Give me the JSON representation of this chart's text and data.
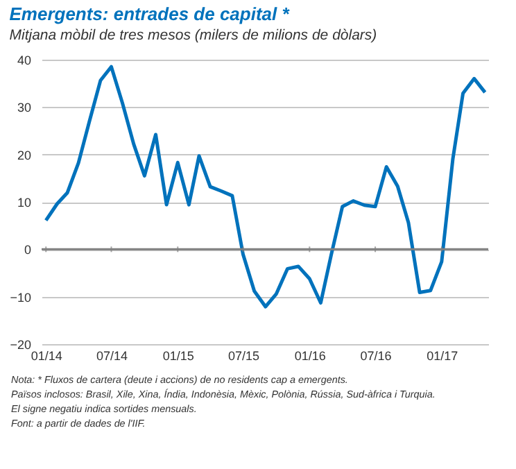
{
  "chart_data": {
    "type": "line",
    "title": "Emergents: entrades de capital *",
    "subtitle": "Mitjana mòbil de tres mesos (milers de milions de dòlars)",
    "x": [
      "2014-01",
      "2014-02",
      "2014-03",
      "2014-04",
      "2014-05",
      "2014-06",
      "2014-07",
      "2014-08",
      "2014-09",
      "2014-10",
      "2014-11",
      "2014-12",
      "2015-01",
      "2015-02",
      "2015-03",
      "2015-04",
      "2015-05",
      "2015-06",
      "2015-07",
      "2015-08",
      "2015-09",
      "2015-10",
      "2015-11",
      "2015-12",
      "2016-01",
      "2016-02",
      "2016-03",
      "2016-04",
      "2016-05",
      "2016-06",
      "2016-07",
      "2016-08",
      "2016-09",
      "2016-10",
      "2016-11",
      "2016-12",
      "2017-01",
      "2017-02",
      "2017-03",
      "2017-04",
      "2017-05"
    ],
    "series": [
      {
        "color": "#0072bc",
        "values": [
          6.1,
          9.6,
          11.9,
          18.2,
          26.9,
          35.6,
          38.5,
          30.8,
          22.2,
          15.5,
          24.2,
          9.4,
          18.3,
          9.4,
          19.7,
          13.2,
          12.3,
          11.3,
          -1.1,
          -8.8,
          -12.1,
          -9.4,
          -4.1,
          -3.6,
          -6.2,
          -11.3,
          -1.2,
          9.0,
          10.2,
          9.3,
          9.0,
          17.4,
          13.3,
          5.6,
          -9.1,
          -8.7,
          -2.6,
          19.1,
          32.9,
          36.0,
          33.1
        ]
      }
    ],
    "xlim": [
      "2013-12-20",
      "2017-05-10"
    ],
    "xticks": [
      {
        "value": "2014-01",
        "label": "01/14"
      },
      {
        "value": "2014-07",
        "label": "07/14"
      },
      {
        "value": "2015-01",
        "label": "01/15"
      },
      {
        "value": "2015-07",
        "label": "07/15"
      },
      {
        "value": "2016-01",
        "label": "01/16"
      },
      {
        "value": "2016-07",
        "label": "07/16"
      },
      {
        "value": "2017-01",
        "label": "01/17"
      }
    ],
    "ylim": [
      -20,
      40
    ],
    "yticks": [
      -20,
      -10,
      0,
      10,
      20,
      30,
      40
    ],
    "grid": "y",
    "ref_lines": [
      {
        "axis": "y",
        "value": 0,
        "color": "#808080"
      }
    ],
    "annotations": [
      "Nota: * Fluxos de cartera (deute i accions) de no residents cap a emergents.",
      "Països inclosos: Brasil, Xile, Xina, Índia, Indonèsia, Mèxic, Polònia, Rússia, Sud-àfrica i Turquia.",
      "El signe negatiu indica sortides mensuals.",
      "Font: a partir de dades de l'IIF."
    ]
  }
}
